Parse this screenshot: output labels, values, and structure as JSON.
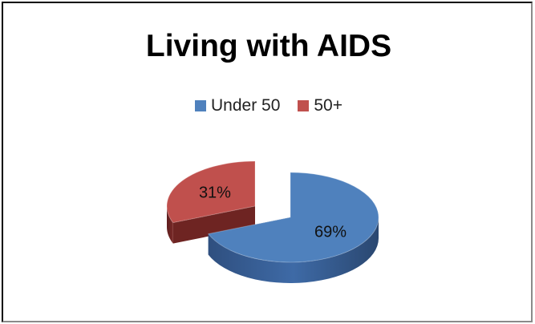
{
  "chart_data": {
    "type": "pie",
    "title": "Living with AIDS",
    "categories": [
      "Under 50",
      "50+"
    ],
    "values": [
      69,
      31
    ],
    "data_labels": [
      "69%",
      "31%"
    ],
    "colors": [
      "#4f81bd",
      "#c0504d"
    ],
    "legend_position": "top",
    "style": "3d-exploded"
  }
}
